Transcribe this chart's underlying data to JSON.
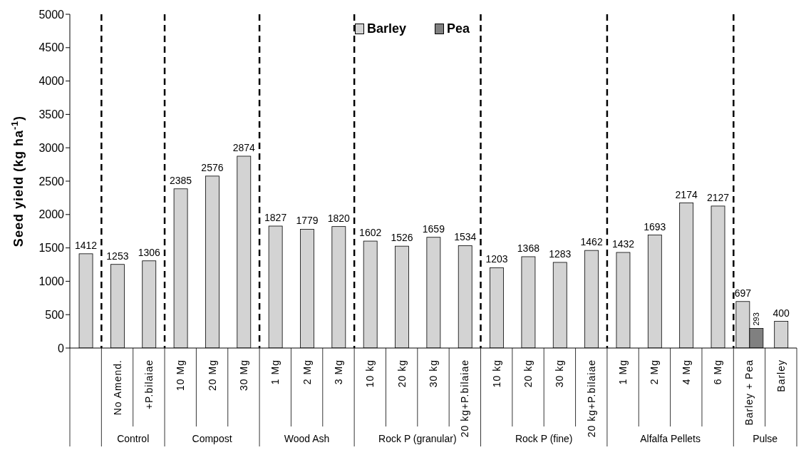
{
  "chart_data": {
    "type": "bar",
    "ylabel": "Seed yield (kg ha$^{-1}$)",
    "categories": [
      null,
      "No Amend.",
      "+P.bilaiae",
      "10 Mg",
      "20 Mg",
      "30 Mg",
      "1 Mg",
      "2 Mg",
      "3 Mg",
      "10 kg",
      "20 kg",
      "30 kg",
      "20 kg+P.bilaiae",
      "10 kg",
      "20 kg",
      "30 kg",
      "20 kg+P.bilaiae",
      "1 Mg",
      "2 Mg",
      "4 Mg",
      "6 Mg",
      "Barley + Pea",
      "Barley"
    ],
    "series": [
      {
        "name": "Barley",
        "color": "#d3d3d3",
        "values": [
          1412,
          1253,
          1306,
          2385,
          2576,
          2874,
          1827,
          1779,
          1820,
          1602,
          1526,
          1659,
          1534,
          1203,
          1368,
          1283,
          1462,
          1432,
          1693,
          2174,
          2127,
          697,
          400
        ]
      },
      {
        "name": "Pea",
        "color": "#808080",
        "values": [
          null,
          null,
          null,
          null,
          null,
          null,
          null,
          null,
          null,
          null,
          null,
          null,
          null,
          null,
          null,
          null,
          null,
          null,
          null,
          null,
          null,
          293,
          null
        ]
      }
    ],
    "ylim": [
      0,
      5000
    ],
    "yticks": [
      0,
      500,
      1000,
      1500,
      2000,
      2500,
      3000,
      3500,
      4000,
      4500,
      5000
    ],
    "grid": false,
    "legend": "top",
    "data_labels": true,
    "annotations": [
      "Control",
      "Compost",
      "Wood Ash",
      "Rock P (granular)",
      "Rock P (fine)",
      "Alfalfa Pellets",
      "Pulse"
    ]
  }
}
